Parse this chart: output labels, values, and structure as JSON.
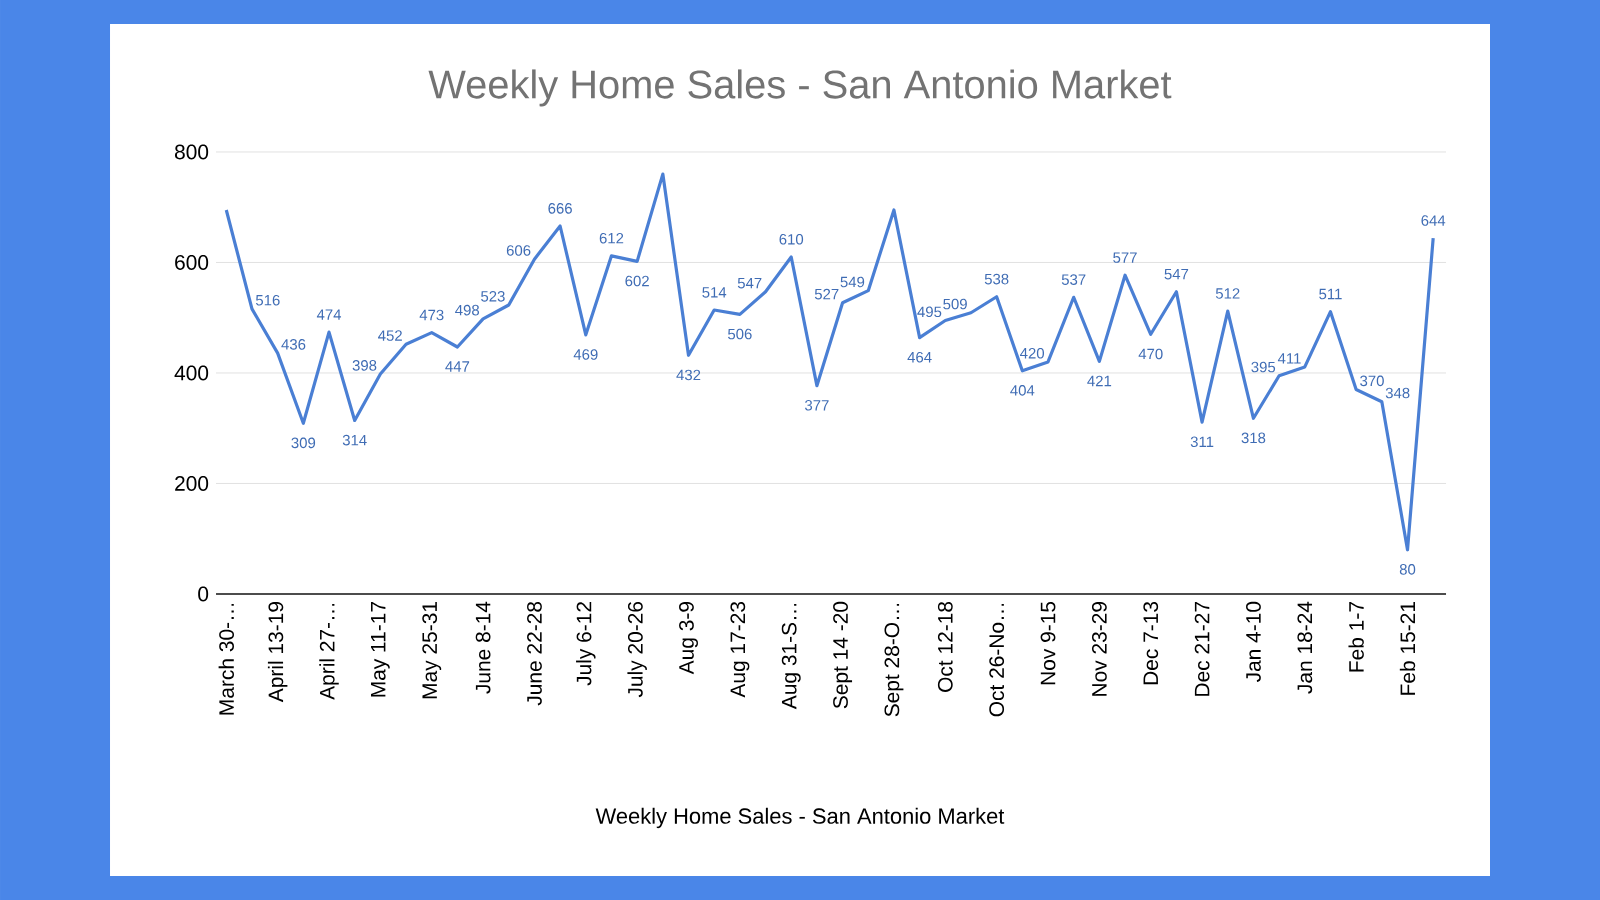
{
  "chart_data": {
    "type": "line",
    "title": "Weekly Home Sales - San Antonio Market",
    "xlabel": "Weekly Home Sales - San Antonio Market",
    "categories": [
      "March 30-…",
      null,
      "April 13-19",
      null,
      "April 27-…",
      null,
      "May 11-17",
      null,
      "May 25-31",
      null,
      "June 8-14",
      null,
      "June 22-28",
      null,
      "July 6-12",
      null,
      "July 20-26",
      null,
      "Aug 3-9",
      null,
      "Aug 17-23",
      null,
      "Aug 31-S…",
      null,
      "Sept 14 -20",
      null,
      "Sept 28-O…",
      null,
      "Oct 12-18",
      null,
      "Oct 26-No…",
      null,
      "Nov 9-15",
      null,
      "Nov 23-29",
      null,
      "Dec 7-13",
      null,
      "Dec 21-27",
      null,
      "Jan 4-10",
      null,
      "Jan 18-24",
      null,
      "Feb 1-7",
      null,
      "Feb 15-21",
      null
    ],
    "values": [
      695,
      516,
      436,
      309,
      474,
      314,
      398,
      452,
      473,
      447,
      498,
      523,
      606,
      666,
      469,
      612,
      602,
      760,
      432,
      514,
      506,
      547,
      610,
      377,
      527,
      549,
      695,
      464,
      495,
      509,
      538,
      404,
      420,
      537,
      421,
      577,
      470,
      547,
      311,
      512,
      318,
      395,
      411,
      511,
      370,
      348,
      80,
      644
    ],
    "value_labels": [
      null,
      "516",
      "436",
      "309",
      "474",
      "314",
      "398",
      "452",
      "473",
      "447",
      "498",
      "523",
      "606",
      "666",
      "469",
      "612",
      "602",
      null,
      "432",
      "514",
      "506",
      "547",
      "610",
      "377",
      "527",
      "549",
      null,
      "464",
      "495",
      "509",
      "538",
      "404",
      "420",
      "537",
      "421",
      "577",
      "470",
      "547",
      "311",
      "512",
      "318",
      "395",
      "411",
      "511",
      "370",
      "348",
      "80",
      "644"
    ],
    "color": "#4a7fd4",
    "ylim": [
      0,
      800
    ],
    "yticks": [
      0,
      200,
      400,
      600,
      800
    ],
    "grid": "y",
    "marker": "none",
    "line_style": "solid"
  }
}
